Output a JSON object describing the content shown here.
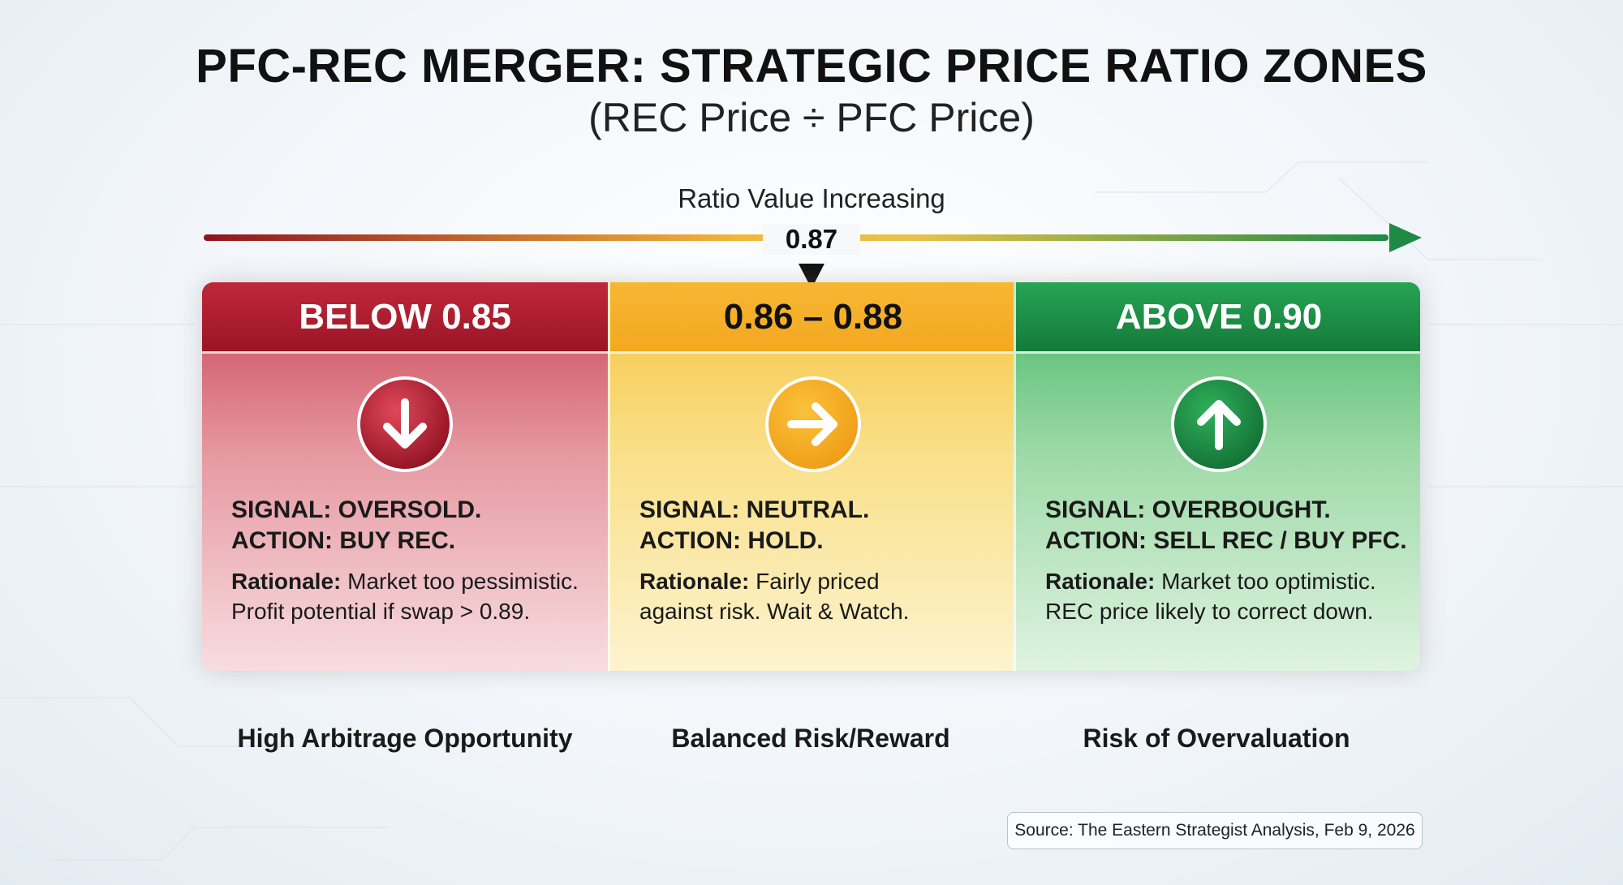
{
  "header": {
    "title": "PFC-REC MERGER: STRATEGIC PRICE RATIO ZONES",
    "subtitle": "(REC Price ÷ PFC Price)"
  },
  "scale": {
    "label": "Ratio Value Increasing",
    "marker": "0.87"
  },
  "zones": [
    {
      "range": "BELOW 0.85",
      "signal": "SIGNAL: OVERSOLD.",
      "action": "ACTION: BUY REC.",
      "rationale_label": "Rationale:",
      "rationale": [
        "Market too pessimistic.",
        "Profit potential if swap > 0.89."
      ],
      "footer": "High Arbitrage Opportunity"
    },
    {
      "range": "0.86 – 0.88",
      "signal": "SIGNAL: NEUTRAL.",
      "action": "ACTION: HOLD.",
      "rationale_label": "Rationale:",
      "rationale": [
        "Fairly priced",
        "against risk. Wait & Watch."
      ],
      "footer": "Balanced Risk/Reward"
    },
    {
      "range": "ABOVE 0.90",
      "signal": "SIGNAL: OVERBOUGHT.",
      "action": "ACTION: SELL REC / BUY PFC.",
      "rationale_label": "Rationale:",
      "rationale": [
        "Market too optimistic.",
        "REC price likely to correct down."
      ],
      "footer": "Risk of Overvaluation"
    }
  ],
  "source": "Source: The Eastern Strategist Analysis, Feb 9, 2026"
}
